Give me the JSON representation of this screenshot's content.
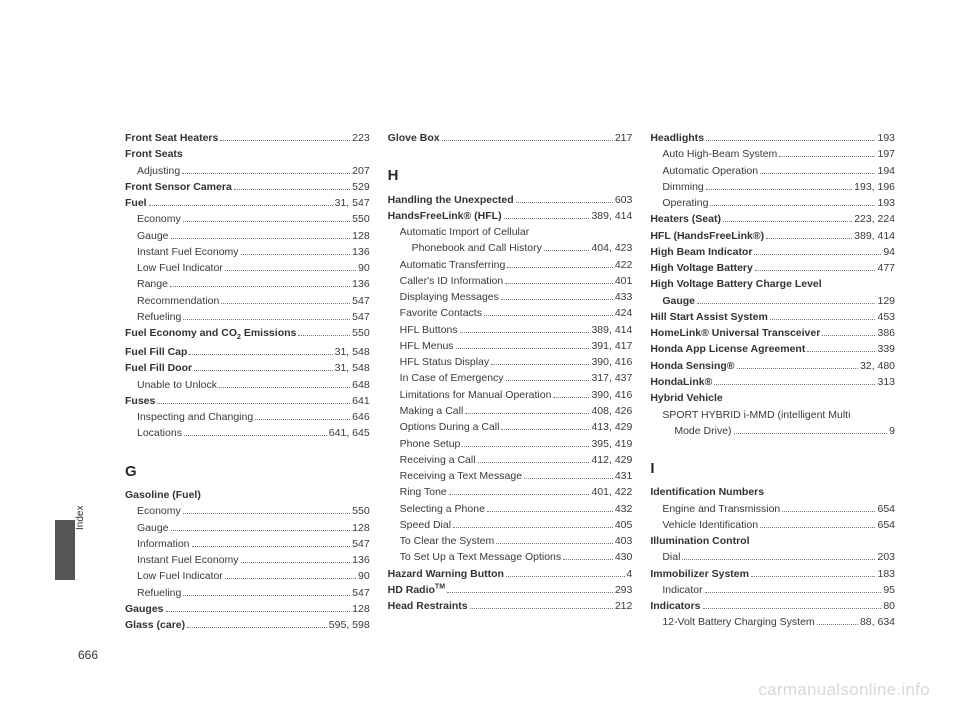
{
  "pageNumber": "666",
  "sideLabel": "Index",
  "watermark": "carmanualsonline.info",
  "columns": [
    {
      "items": [
        {
          "type": "entry",
          "label": "Front Seat Heaters",
          "bold": true,
          "page": "223"
        },
        {
          "type": "entry",
          "label": "Front Seats",
          "bold": true,
          "nopage": true
        },
        {
          "type": "entry",
          "label": "Adjusting",
          "sub": 1,
          "page": "207"
        },
        {
          "type": "entry",
          "label": "Front Sensor Camera",
          "bold": true,
          "page": "529"
        },
        {
          "type": "entry",
          "label": "Fuel",
          "bold": true,
          "page": "31, 547"
        },
        {
          "type": "entry",
          "label": "Economy",
          "sub": 1,
          "page": "550"
        },
        {
          "type": "entry",
          "label": "Gauge",
          "sub": 1,
          "page": "128"
        },
        {
          "type": "entry",
          "label": "Instant Fuel Economy",
          "sub": 1,
          "page": "136"
        },
        {
          "type": "entry",
          "label": "Low Fuel Indicator",
          "sub": 1,
          "page": "90"
        },
        {
          "type": "entry",
          "label": "Range",
          "sub": 1,
          "page": "136"
        },
        {
          "type": "entry",
          "label": "Recommendation",
          "sub": 1,
          "page": "547"
        },
        {
          "type": "entry",
          "label": "Refueling",
          "sub": 1,
          "page": "547"
        },
        {
          "type": "entry",
          "label": "Fuel Economy and CO",
          "labelSuffix": " Emissions",
          "subscript": "2",
          "bold": true,
          "page": "550"
        },
        {
          "type": "entry",
          "label": "Fuel Fill Cap",
          "bold": true,
          "page": "31, 548"
        },
        {
          "type": "entry",
          "label": "Fuel Fill Door",
          "bold": true,
          "page": "31, 548"
        },
        {
          "type": "entry",
          "label": "Unable to Unlock",
          "sub": 1,
          "page": "648"
        },
        {
          "type": "entry",
          "label": "Fuses",
          "bold": true,
          "page": "641"
        },
        {
          "type": "entry",
          "label": "Inspecting and Changing",
          "sub": 1,
          "page": "646"
        },
        {
          "type": "entry",
          "label": "Locations",
          "sub": 1,
          "page": "641, 645"
        },
        {
          "type": "section",
          "label": "G"
        },
        {
          "type": "entry",
          "label": "Gasoline (Fuel)",
          "bold": true,
          "nopage": true
        },
        {
          "type": "entry",
          "label": "Economy",
          "sub": 1,
          "page": "550"
        },
        {
          "type": "entry",
          "label": "Gauge",
          "sub": 1,
          "page": "128"
        },
        {
          "type": "entry",
          "label": "Information",
          "sub": 1,
          "page": "547"
        },
        {
          "type": "entry",
          "label": "Instant Fuel Economy",
          "sub": 1,
          "page": "136"
        },
        {
          "type": "entry",
          "label": "Low Fuel Indicator",
          "sub": 1,
          "page": "90"
        },
        {
          "type": "entry",
          "label": "Refueling",
          "sub": 1,
          "page": "547"
        },
        {
          "type": "entry",
          "label": "Gauges",
          "bold": true,
          "page": "128"
        },
        {
          "type": "entry",
          "label": "Glass (care)",
          "bold": true,
          "page": "595, 598"
        }
      ]
    },
    {
      "items": [
        {
          "type": "entry",
          "label": "Glove Box",
          "bold": true,
          "page": "217"
        },
        {
          "type": "section",
          "label": "H"
        },
        {
          "type": "entry",
          "label": "Handling the Unexpected",
          "bold": true,
          "page": "603"
        },
        {
          "type": "entry",
          "label": "HandsFreeLink® (HFL)",
          "bold": true,
          "page": "389, 414"
        },
        {
          "type": "entry",
          "label": "Automatic Import of Cellular",
          "sub": 1,
          "nopage": true
        },
        {
          "type": "entry",
          "label": "Phonebook and Call History",
          "sub": 2,
          "page": "404, 423"
        },
        {
          "type": "entry",
          "label": "Automatic Transferring",
          "sub": 1,
          "page": "422"
        },
        {
          "type": "entry",
          "label": "Caller's ID Information",
          "sub": 1,
          "page": "401"
        },
        {
          "type": "entry",
          "label": "Displaying Messages",
          "sub": 1,
          "page": "433"
        },
        {
          "type": "entry",
          "label": "Favorite Contacts",
          "sub": 1,
          "page": "424"
        },
        {
          "type": "entry",
          "label": "HFL Buttons",
          "sub": 1,
          "page": "389, 414"
        },
        {
          "type": "entry",
          "label": "HFL Menus",
          "sub": 1,
          "page": "391, 417"
        },
        {
          "type": "entry",
          "label": "HFL Status Display",
          "sub": 1,
          "page": "390, 416"
        },
        {
          "type": "entry",
          "label": "In Case of Emergency",
          "sub": 1,
          "page": "317, 437"
        },
        {
          "type": "entry",
          "label": "Limitations for Manual Operation",
          "sub": 1,
          "page": "390, 416"
        },
        {
          "type": "entry",
          "label": "Making a Call",
          "sub": 1,
          "page": "408, 426"
        },
        {
          "type": "entry",
          "label": "Options During a Call",
          "sub": 1,
          "page": "413, 429"
        },
        {
          "type": "entry",
          "label": "Phone Setup",
          "sub": 1,
          "page": "395, 419"
        },
        {
          "type": "entry",
          "label": "Receiving a Call",
          "sub": 1,
          "page": "412, 429"
        },
        {
          "type": "entry",
          "label": "Receiving a Text Message",
          "sub": 1,
          "page": "431"
        },
        {
          "type": "entry",
          "label": "Ring Tone",
          "sub": 1,
          "page": "401, 422"
        },
        {
          "type": "entry",
          "label": "Selecting a Phone",
          "sub": 1,
          "page": "432"
        },
        {
          "type": "entry",
          "label": "Speed Dial",
          "sub": 1,
          "page": "405"
        },
        {
          "type": "entry",
          "label": "To Clear the System",
          "sub": 1,
          "page": "403"
        },
        {
          "type": "entry",
          "label": "To Set Up a Text Message Options",
          "sub": 1,
          "page": "430"
        },
        {
          "type": "entry",
          "label": "Hazard Warning Button",
          "bold": true,
          "page": "4"
        },
        {
          "type": "entry",
          "label": "HD Radio",
          "superscript": "TM",
          "bold": true,
          "page": "293"
        },
        {
          "type": "entry",
          "label": "Head Restraints",
          "bold": true,
          "page": "212"
        }
      ]
    },
    {
      "items": [
        {
          "type": "entry",
          "label": "Headlights",
          "bold": true,
          "page": "193"
        },
        {
          "type": "entry",
          "label": "Auto High-Beam System",
          "sub": 1,
          "page": "197"
        },
        {
          "type": "entry",
          "label": "Automatic Operation",
          "sub": 1,
          "page": "194"
        },
        {
          "type": "entry",
          "label": "Dimming",
          "sub": 1,
          "page": "193, 196"
        },
        {
          "type": "entry",
          "label": "Operating",
          "sub": 1,
          "page": "193"
        },
        {
          "type": "entry",
          "label": "Heaters (Seat)",
          "bold": true,
          "page": "223, 224"
        },
        {
          "type": "entry",
          "label": "HFL (HandsFreeLink®)",
          "bold": true,
          "page": "389, 414"
        },
        {
          "type": "entry",
          "label": "High Beam Indicator",
          "bold": true,
          "page": "94"
        },
        {
          "type": "entry",
          "label": "High Voltage Battery",
          "bold": true,
          "page": "477"
        },
        {
          "type": "entry",
          "label": "High Voltage Battery Charge Level",
          "bold": true,
          "nopage": true
        },
        {
          "type": "entry",
          "label": "Gauge",
          "boldPrefix": true,
          "sub": 1,
          "page": "129"
        },
        {
          "type": "entry",
          "label": "Hill Start Assist System",
          "bold": true,
          "page": "453"
        },
        {
          "type": "entry",
          "label": "HomeLink® Universal Transceiver",
          "bold": true,
          "page": "386"
        },
        {
          "type": "entry",
          "label": "Honda App License Agreement",
          "bold": true,
          "page": "339"
        },
        {
          "type": "entry",
          "label": "Honda Sensing®",
          "bold": true,
          "page": "32, 480"
        },
        {
          "type": "entry",
          "label": "HondaLink®",
          "bold": true,
          "page": "313"
        },
        {
          "type": "entry",
          "label": "Hybrid Vehicle",
          "bold": true,
          "nopage": true
        },
        {
          "type": "entry",
          "label": "SPORT HYBRID i-MMD (intelligent Multi",
          "sub": 1,
          "nopage": true
        },
        {
          "type": "entry",
          "label": "Mode Drive)",
          "sub": 2,
          "page": "9"
        },
        {
          "type": "section",
          "label": "I"
        },
        {
          "type": "entry",
          "label": "Identification Numbers",
          "bold": true,
          "nopage": true
        },
        {
          "type": "entry",
          "label": "Engine and Transmission",
          "sub": 1,
          "page": "654"
        },
        {
          "type": "entry",
          "label": "Vehicle Identification",
          "sub": 1,
          "page": "654"
        },
        {
          "type": "entry",
          "label": "Illumination Control",
          "bold": true,
          "nopage": true
        },
        {
          "type": "entry",
          "label": "Dial",
          "sub": 1,
          "page": "203"
        },
        {
          "type": "entry",
          "label": "Immobilizer System",
          "bold": true,
          "page": "183"
        },
        {
          "type": "entry",
          "label": "Indicator",
          "sub": 1,
          "page": "95"
        },
        {
          "type": "entry",
          "label": "Indicators",
          "bold": true,
          "page": "80"
        },
        {
          "type": "entry",
          "label": "12-Volt Battery Charging System",
          "sub": 1,
          "page": "88, 634"
        }
      ]
    }
  ]
}
